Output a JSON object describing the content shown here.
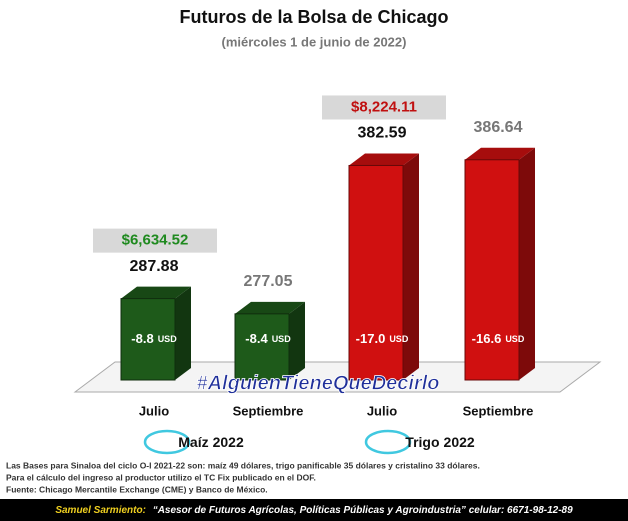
{
  "chart_data": {
    "type": "bar3d",
    "title": "Futuros de la Bolsa de Chicago",
    "subtitle": "(miércoles 1 de junio de 2022)",
    "categories": [
      "Julio",
      "Septiembre",
      "Julio",
      "Septiembre"
    ],
    "values": [
      287.88,
      277.05,
      382.59,
      386.64
    ],
    "colors": [
      "#1e5a1a",
      "#1e5a1a",
      "#d01010",
      "#d01010"
    ],
    "value_label_colors": [
      "#111111",
      "#777777",
      "#111111",
      "#777777"
    ],
    "ylim": [
      230,
      400
    ],
    "basis": {
      "values": [
        -8.8,
        -8.4,
        -17.0,
        -16.6
      ],
      "value_labels": [
        "-8.8",
        "-8.4",
        "-17.0",
        "-16.6"
      ],
      "unit": "USD"
    },
    "annotations": [
      {
        "text": "$6,634.52",
        "color": "#1f8a1f"
      },
      {
        "text": "$8,224.11",
        "color": "#c01010"
      }
    ],
    "groups": [
      {
        "name": "Maíz",
        "year": "2022"
      },
      {
        "name": "Trigo",
        "year": "2022"
      }
    ],
    "watermark": "#AlguienTieneQueDecirlo",
    "notes": [
      "Las Bases para Sinaloa del ciclo O-I 2021-22 son: maíz 49 dólares, trigo panificable 35 dólares y cristalino 33 dólares.",
      "Para el cálculo del ingreso al productor utilizo el TC Fix publicado en el DOF.",
      "Fuente: Chicago Mercantile Exchange (CME) y Banco de México."
    ],
    "footer": {
      "name": "Samuel Sarmiento:",
      "text": "“Asesor de Futuros Agrícolas, Políticas Públicas y Agroindustria”  celular: 6671-98-12-89"
    }
  }
}
